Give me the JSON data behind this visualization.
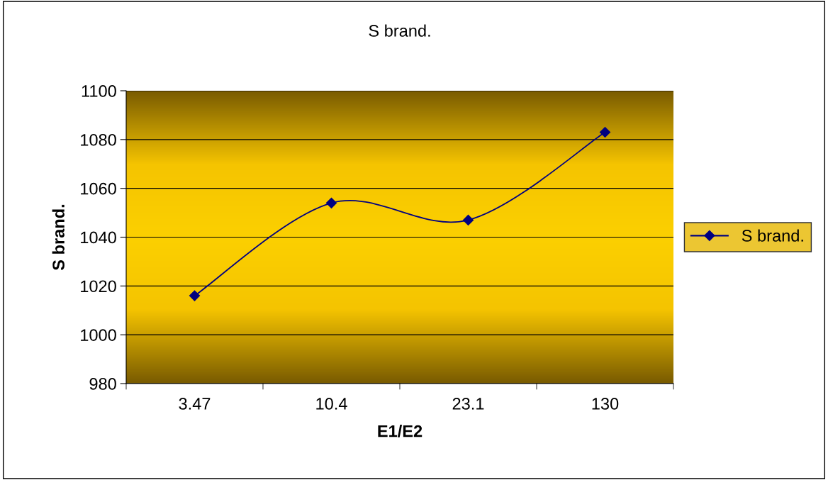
{
  "chart_data": {
    "type": "line",
    "title": "S brand.",
    "xlabel": "E1/E2",
    "ylabel": "S brand.",
    "categories": [
      "3.47",
      "10.4",
      "23.1",
      "130"
    ],
    "series": [
      {
        "name": "S brand.",
        "color": "#000080",
        "values": [
          1016,
          1054,
          1047,
          1083
        ]
      }
    ],
    "ylim": [
      980,
      1100
    ],
    "yticks": [
      980,
      1000,
      1020,
      1040,
      1060,
      1080,
      1100
    ],
    "grid": "y",
    "legend": "right",
    "marker": "diamond",
    "line_style": "solid"
  }
}
